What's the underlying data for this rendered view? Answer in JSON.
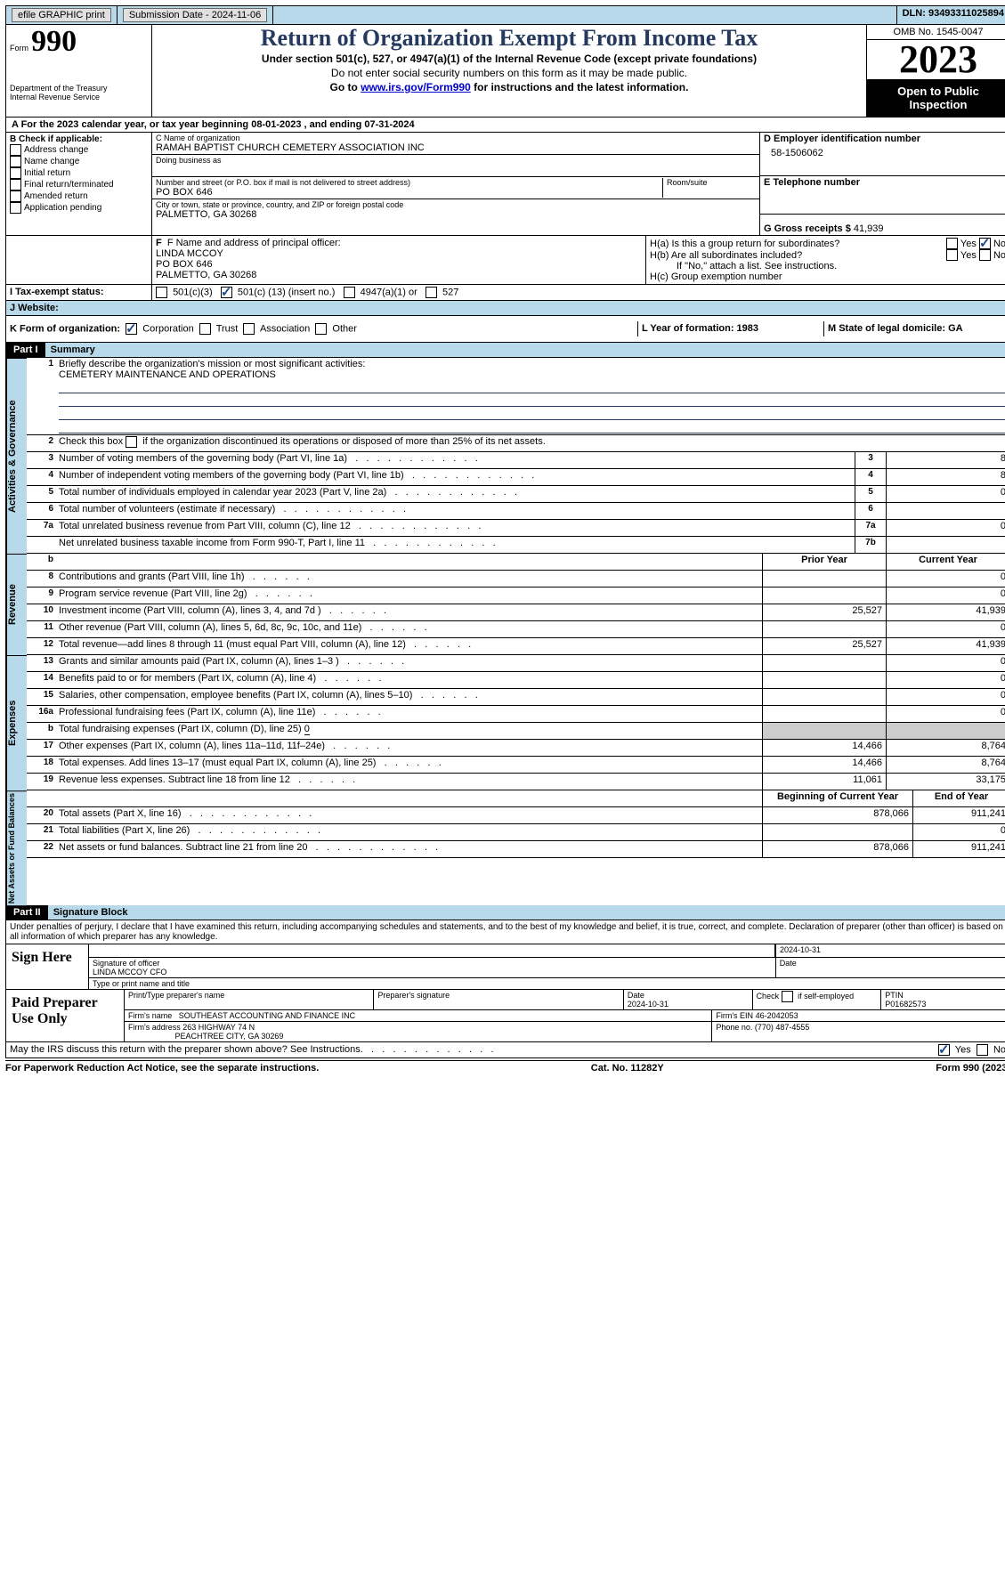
{
  "topbar": {
    "efile": "efile GRAPHIC print",
    "submission": "Submission Date - 2024-11-06",
    "dln_label": "DLN:",
    "dln": "93493311025894"
  },
  "header": {
    "form_label": "Form",
    "form_no": "990",
    "dept1": "Department of the Treasury",
    "dept2": "Internal Revenue Service",
    "title": "Return of Organization Exempt From Income Tax",
    "sub1": "Under section 501(c), 527, or 4947(a)(1) of the Internal Revenue Code (except private foundations)",
    "sub2": "Do not enter social security numbers on this form as it may be made public.",
    "sub3a": "Go to ",
    "sub3b": "www.irs.gov/Form990",
    "sub3c": " for instructions and the latest information.",
    "omb": "OMB No. 1545-0047",
    "year": "2023",
    "open": "Open to Public Inspection"
  },
  "periodA": {
    "prefix": "A For the 2023 calendar year, or tax year beginning ",
    "begin": "08-01-2023",
    "mid": "   , and ending ",
    "end": "07-31-2024"
  },
  "boxB": {
    "heading": "B Check if applicable:",
    "items": [
      "Address change",
      "Name change",
      "Initial return",
      "Final return/terminated",
      "Amended return",
      "Application pending"
    ]
  },
  "boxC": {
    "label_name": "C Name of organization",
    "name": "RAMAH BAPTIST CHURCH CEMETERY ASSOCIATION INC",
    "dba_label": "Doing business as",
    "addr_label": "Number and street (or P.O. box if mail is not delivered to street address)",
    "addr": "PO BOX 646",
    "room_label": "Room/suite",
    "city_label": "City or town, state or province, country, and ZIP or foreign postal code",
    "city": "PALMETTO, GA   30268"
  },
  "boxD": {
    "label": "D Employer identification number",
    "val": "58-1506062"
  },
  "boxE": {
    "label": "E Telephone number",
    "val": ""
  },
  "boxG": {
    "label": "G Gross receipts $",
    "val": "41,939"
  },
  "boxF": {
    "label": "F  Name and address of principal officer:",
    "name": "LINDA MCCOY",
    "addr": "PO BOX 646",
    "city": "PALMETTO, GA   30268"
  },
  "boxH": {
    "a_label": "H(a)  Is this a group return for subordinates?",
    "b_label": "H(b)  Are all subordinates included?",
    "b_note": "If \"No,\" attach a list. See instructions.",
    "c_label": "H(c)  Group exemption number",
    "yes": "Yes",
    "no": "No"
  },
  "taxExempt": {
    "I": "I   Tax-exempt status:",
    "o1": "501(c)(3)",
    "o2a": "501(c) (",
    "o2b": "13",
    "o2c": ") (insert no.)",
    "o3": "4947(a)(1) or",
    "o4": "527"
  },
  "website": {
    "J": "J   Website:"
  },
  "rowK": {
    "K": "K Form of organization:",
    "o1": "Corporation",
    "o2": "Trust",
    "o3": "Association",
    "o4": "Other",
    "L": "L Year of formation: 1983",
    "M": "M State of legal domicile: GA"
  },
  "part1": {
    "tag": "Part I",
    "title": "Summary",
    "q1": "Briefly describe the organization's mission or most significant activities:",
    "mission": "CEMETERY MAINTENANCE AND OPERATIONS",
    "q2": "Check this box        if the organization discontinued its operations or disposed of more than 25% of its net assets.",
    "rows_gov": [
      {
        "n": "3",
        "d": "Number of voting members of the governing body (Part VI, line 1a)",
        "ref": "3",
        "v": "8"
      },
      {
        "n": "4",
        "d": "Number of independent voting members of the governing body (Part VI, line 1b)",
        "ref": "4",
        "v": "8"
      },
      {
        "n": "5",
        "d": "Total number of individuals employed in calendar year 2023 (Part V, line 2a)",
        "ref": "5",
        "v": "0"
      },
      {
        "n": "6",
        "d": "Total number of volunteers (estimate if necessary)",
        "ref": "6",
        "v": ""
      },
      {
        "n": "7a",
        "d": "Total unrelated business revenue from Part VIII, column (C), line 12",
        "ref": "7a",
        "v": "0"
      },
      {
        "n": "",
        "d": "Net unrelated business taxable income from Form 990-T, Part I, line 11",
        "ref": "7b",
        "v": ""
      }
    ],
    "hdr_b": "b",
    "hdr_prior": "Prior Year",
    "hdr_curr": "Current Year",
    "rows_rev": [
      {
        "n": "8",
        "d": "Contributions and grants (Part VIII, line 1h)",
        "a": "",
        "b": "0"
      },
      {
        "n": "9",
        "d": "Program service revenue (Part VIII, line 2g)",
        "a": "",
        "b": "0"
      },
      {
        "n": "10",
        "d": "Investment income (Part VIII, column (A), lines 3, 4, and 7d )",
        "a": "25,527",
        "b": "41,939"
      },
      {
        "n": "11",
        "d": "Other revenue (Part VIII, column (A), lines 5, 6d, 8c, 9c, 10c, and 11e)",
        "a": "",
        "b": "0"
      },
      {
        "n": "12",
        "d": "Total revenue—add lines 8 through 11 (must equal Part VIII, column (A), line 12)",
        "a": "25,527",
        "b": "41,939"
      }
    ],
    "rows_exp": [
      {
        "n": "13",
        "d": "Grants and similar amounts paid (Part IX, column (A), lines 1–3 )",
        "a": "",
        "b": "0"
      },
      {
        "n": "14",
        "d": "Benefits paid to or for members (Part IX, column (A), line 4)",
        "a": "",
        "b": "0"
      },
      {
        "n": "15",
        "d": "Salaries, other compensation, employee benefits (Part IX, column (A), lines 5–10)",
        "a": "",
        "b": "0"
      },
      {
        "n": "16a",
        "d": "Professional fundraising fees (Part IX, column (A), line 11e)",
        "a": "",
        "b": "0"
      }
    ],
    "row_16b": {
      "n": "b",
      "d": "Total fundraising expenses (Part IX, column (D), line 25)",
      "u": "0"
    },
    "rows_exp2": [
      {
        "n": "17",
        "d": "Other expenses (Part IX, column (A), lines 11a–11d, 11f–24e)",
        "a": "14,466",
        "b": "8,764"
      },
      {
        "n": "18",
        "d": "Total expenses. Add lines 13–17 (must equal Part IX, column (A), line 25)",
        "a": "14,466",
        "b": "8,764"
      },
      {
        "n": "19",
        "d": "Revenue less expenses. Subtract line 18 from line 12",
        "a": "11,061",
        "b": "33,175"
      }
    ],
    "hdr_boy": "Beginning of Current Year",
    "hdr_eoy": "End of Year",
    "rows_na": [
      {
        "n": "20",
        "d": "Total assets (Part X, line 16)",
        "a": "878,066",
        "b": "911,241"
      },
      {
        "n": "21",
        "d": "Total liabilities (Part X, line 26)",
        "a": "",
        "b": "0"
      },
      {
        "n": "22",
        "d": "Net assets or fund balances. Subtract line 21 from line 20",
        "a": "878,066",
        "b": "911,241"
      }
    ],
    "side_gov": "Activities & Governance",
    "side_rev": "Revenue",
    "side_exp": "Expenses",
    "side_na": "Net Assets or Fund Balances"
  },
  "part2": {
    "tag": "Part II",
    "title": "Signature Block",
    "decl": "Under penalties of perjury, I declare that I have examined this return, including accompanying schedules and statements, and to the best of my knowledge and belief, it is true, correct, and complete. Declaration of preparer (other than officer) is based on all information of which preparer has any knowledge."
  },
  "sign": {
    "here": "Sign Here",
    "sig_label": "Signature of officer",
    "officer": "LINDA MCCOY CFO",
    "name_label": "Type or print name and title",
    "date_label": "Date",
    "date": "2024-10-31"
  },
  "paid": {
    "title": "Paid Preparer Use Only",
    "p1": "Print/Type preparer's name",
    "p2": "Preparer's signature",
    "p3": "Date",
    "p3v": "2024-10-31",
    "p4": "Check        if self-employed",
    "p5": "PTIN",
    "p5v": "P01682573",
    "firm_label": "Firm's name",
    "firm": "SOUTHEAST ACCOUNTING AND FINANCE INC",
    "ein_label": "Firm's EIN",
    "ein": "46-2042053",
    "addr_label": "Firm's address",
    "addr1": "263 HIGHWAY 74 N",
    "addr2": "PEACHTREE CITY, GA   30269",
    "phone_label": "Phone no.",
    "phone": "(770) 487-4555"
  },
  "discuss": {
    "q": "May the IRS discuss this return with the preparer shown above? See Instructions.",
    "yes": "Yes",
    "no": "No"
  },
  "footer": {
    "left": "For Paperwork Reduction Act Notice, see the separate instructions.",
    "mid": "Cat. No. 11282Y",
    "right": "Form 990 (2023)"
  }
}
